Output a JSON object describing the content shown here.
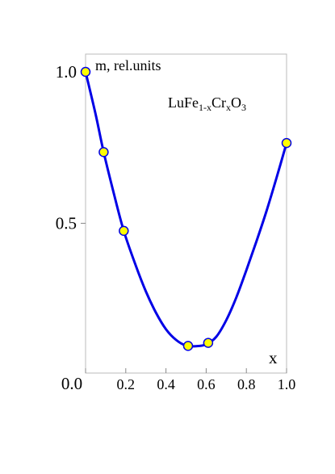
{
  "chart_data": {
    "type": "scatter",
    "ylabel": "m, rel.units",
    "xlabel": "x",
    "annotation": {
      "base": "LuFe",
      "sub1": "1-x",
      "mid": "Cr",
      "sub2": "x",
      "tail": "O",
      "sub3": "3"
    },
    "xlim": [
      0.0,
      1.0
    ],
    "ylim": [
      0.0,
      1.0
    ],
    "x_ticks": [
      {
        "value": 0.0,
        "label": "0.0"
      },
      {
        "value": 0.2,
        "label": "0.2"
      },
      {
        "value": 0.4,
        "label": "0.4"
      },
      {
        "value": 0.6,
        "label": "0.6"
      },
      {
        "value": 0.8,
        "label": "0.8"
      },
      {
        "value": 1.0,
        "label": "1.0"
      }
    ],
    "y_ticks": [
      {
        "value": 0.5,
        "label": "0.5"
      },
      {
        "value": 1.0,
        "label": "1.0"
      }
    ],
    "grid": false,
    "points": [
      {
        "x": 0.0,
        "y": 1.0
      },
      {
        "x": 0.09,
        "y": 0.735
      },
      {
        "x": 0.19,
        "y": 0.475
      },
      {
        "x": 0.51,
        "y": 0.095
      },
      {
        "x": 0.61,
        "y": 0.105
      },
      {
        "x": 1.0,
        "y": 0.765
      }
    ],
    "fit_curve": [
      [
        0.0,
        1.0
      ],
      [
        0.05,
        0.86
      ],
      [
        0.09,
        0.735
      ],
      [
        0.14,
        0.6
      ],
      [
        0.19,
        0.475
      ],
      [
        0.25,
        0.36
      ],
      [
        0.3,
        0.275
      ],
      [
        0.35,
        0.205
      ],
      [
        0.4,
        0.15
      ],
      [
        0.45,
        0.115
      ],
      [
        0.5,
        0.096
      ],
      [
        0.55,
        0.094
      ],
      [
        0.6,
        0.1
      ],
      [
        0.65,
        0.125
      ],
      [
        0.7,
        0.18
      ],
      [
        0.75,
        0.255
      ],
      [
        0.8,
        0.345
      ],
      [
        0.85,
        0.44
      ],
      [
        0.9,
        0.54
      ],
      [
        0.95,
        0.65
      ],
      [
        1.0,
        0.765
      ]
    ],
    "colors": {
      "curve": "#0000e6",
      "marker_fill": "#ffff00",
      "marker_edge": "#0000e6",
      "axes": "#bbbbbb"
    }
  }
}
